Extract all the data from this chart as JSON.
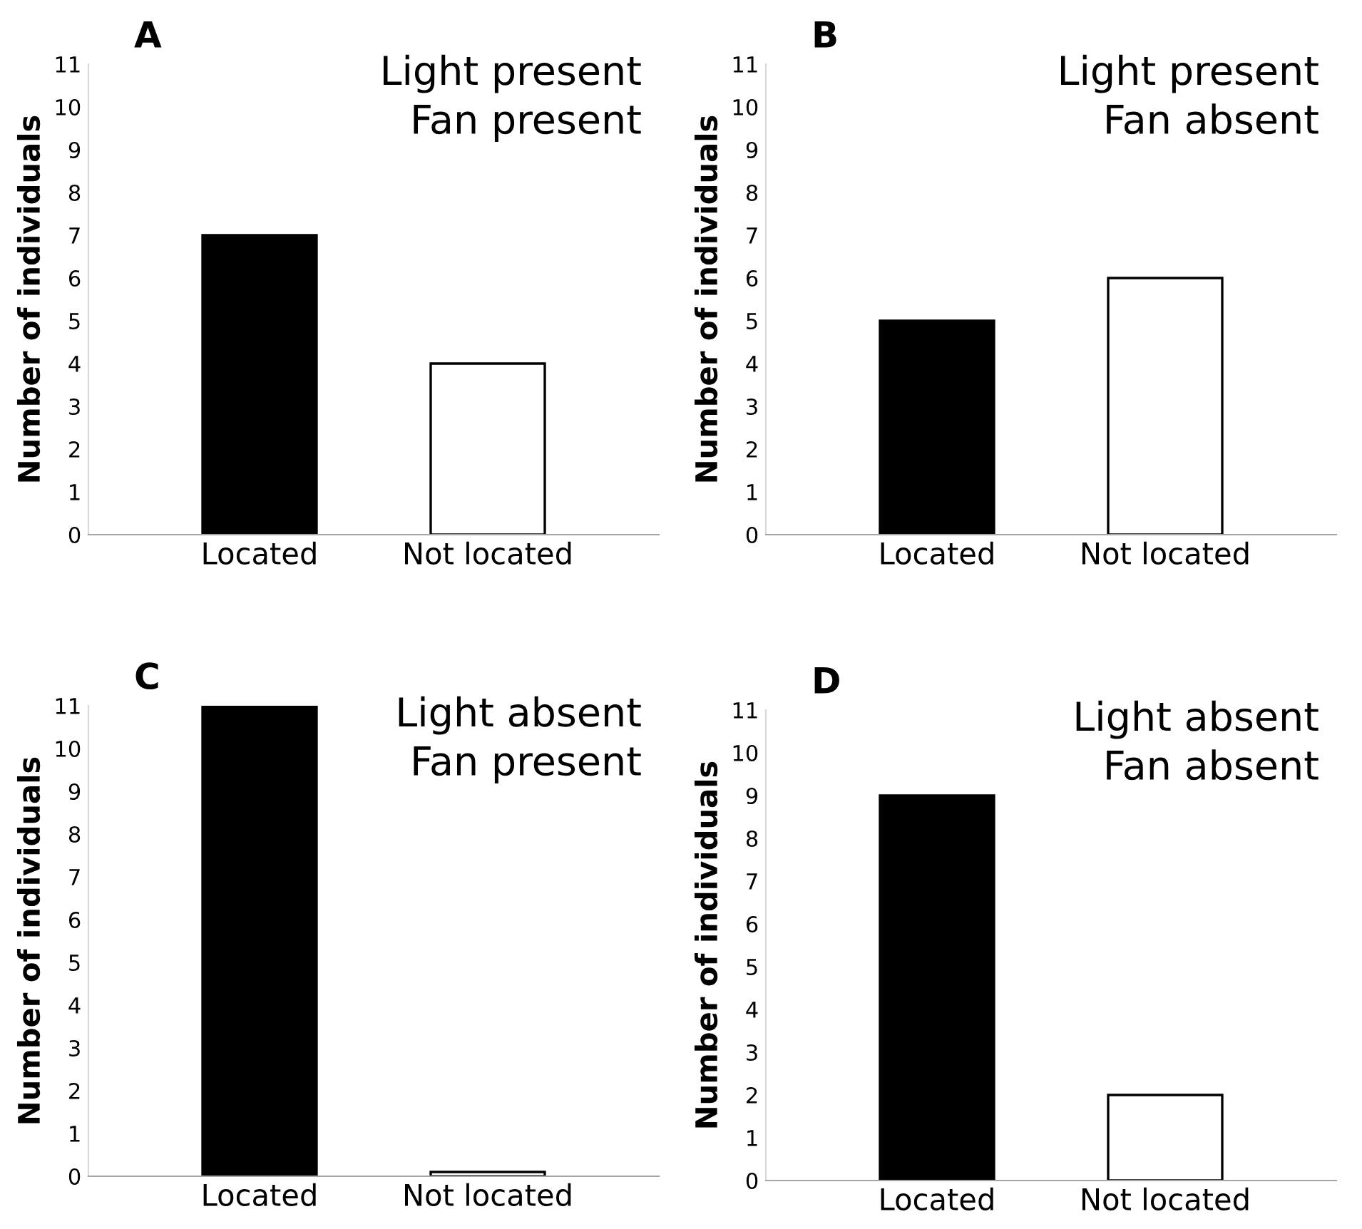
{
  "chart_data": [
    {
      "type": "bar",
      "title": "A",
      "annotations": [
        "Light present",
        "Fan present"
      ],
      "ylabel": "Number of individuals",
      "categories": [
        "Located",
        "Not located"
      ],
      "values": [
        7,
        4
      ],
      "colors": [
        "#000000",
        "#ffffff"
      ],
      "ylim": [
        0,
        11
      ],
      "yticks": [
        0,
        1,
        2,
        3,
        4,
        5,
        6,
        7,
        8,
        9,
        10,
        11
      ],
      "grid": false,
      "legend": false
    },
    {
      "type": "bar",
      "title": "B",
      "annotations": [
        "Light present",
        "Fan absent"
      ],
      "ylabel": "Number of individuals",
      "categories": [
        "Located",
        "Not located"
      ],
      "values": [
        5,
        6
      ],
      "colors": [
        "#000000",
        "#ffffff"
      ],
      "ylim": [
        0,
        11
      ],
      "yticks": [
        0,
        1,
        2,
        3,
        4,
        5,
        6,
        7,
        8,
        9,
        10,
        11
      ],
      "grid": false,
      "legend": false
    },
    {
      "type": "bar",
      "title": "C",
      "annotations": [
        "Light absent",
        "Fan present"
      ],
      "ylabel": "Number of individuals",
      "categories": [
        "Located",
        "Not located"
      ],
      "values": [
        11,
        0.1
      ],
      "colors": [
        "#000000",
        "#ffffff"
      ],
      "ylim": [
        0,
        11
      ],
      "yticks": [
        0,
        1,
        2,
        3,
        4,
        5,
        6,
        7,
        8,
        9,
        10,
        11
      ],
      "grid": false,
      "legend": false
    },
    {
      "type": "bar",
      "title": "D",
      "annotations": [
        "Light absent",
        "Fan absent"
      ],
      "ylabel": "Number of individuals",
      "categories": [
        "Located",
        "Not located"
      ],
      "values": [
        9,
        2
      ],
      "colors": [
        "#000000",
        "#ffffff"
      ],
      "ylim": [
        0,
        11
      ],
      "yticks": [
        0,
        1,
        2,
        3,
        4,
        5,
        6,
        7,
        8,
        9,
        10,
        11
      ],
      "grid": false,
      "legend": false
    }
  ]
}
